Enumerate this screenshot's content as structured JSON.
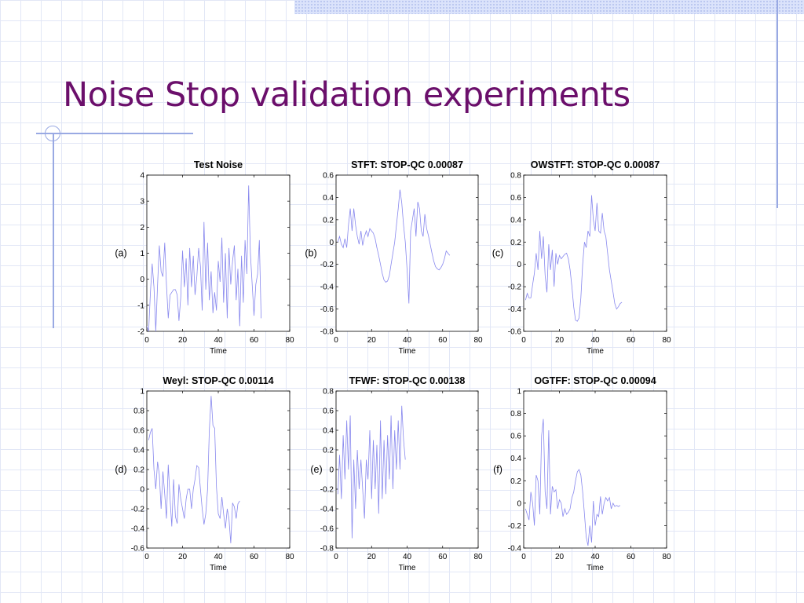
{
  "slide": {
    "title": "Noise Stop validation experiments"
  },
  "colors": {
    "title": "#6b0f6b",
    "series_line": "#8888ee",
    "decor_line": "#99a9e3"
  },
  "chart_data": [
    {
      "type": "line",
      "panel_label": "(a)",
      "title": "Test Noise",
      "xlabel": "Time",
      "ylabel": "",
      "xlim": [
        0,
        80
      ],
      "ylim": [
        -2,
        4
      ],
      "xticks": [
        0,
        20,
        40,
        60,
        80
      ],
      "yticks": [
        -2,
        -1,
        0,
        1,
        2,
        3,
        4
      ],
      "x_start": 0,
      "values": [
        -1.8,
        -2.0,
        -0.5,
        0.6,
        -0.3,
        -2.0,
        -0.2,
        1.3,
        0.3,
        0.1,
        1.4,
        -0.2,
        -1.5,
        -0.6,
        -0.5,
        -0.4,
        -0.4,
        -0.6,
        -1.6,
        -0.7,
        1.1,
        -0.3,
        0.8,
        -1.0,
        1.2,
        -0.3,
        0.9,
        -0.6,
        0.1,
        1.2,
        0.5,
        -1.2,
        2.2,
        -0.4,
        1.4,
        -0.8,
        0.3,
        -1.3,
        -0.5,
        -1.2,
        0.7,
        -0.1,
        1.6,
        -0.9,
        1.0,
        -1.5,
        1.2,
        -0.2,
        0.7,
        1.3,
        -0.8,
        0.4,
        -1.8,
        0.9,
        -0.9,
        1.5,
        0.2,
        3.6,
        1.0,
        -0.2,
        -1.4,
        -0.2,
        0.2,
        1.5,
        -1.5
      ]
    },
    {
      "type": "line",
      "panel_label": "(b)",
      "title": "STFT: STOP-QC 0.00087",
      "xlabel": "Time",
      "ylabel": "",
      "xlim": [
        0,
        80
      ],
      "ylim": [
        -0.8,
        0.6
      ],
      "xticks": [
        0,
        20,
        40,
        60,
        80
      ],
      "yticks": [
        -0.8,
        -0.6,
        -0.4,
        -0.2,
        0,
        0.2,
        0.4,
        0.6
      ],
      "x_start": 1,
      "values": [
        0.0,
        0.05,
        -0.02,
        -0.05,
        0.03,
        -0.05,
        0.15,
        0.3,
        0.1,
        0.3,
        0.15,
        0.05,
        -0.02,
        0.1,
        -0.03,
        0.05,
        0.1,
        0.05,
        0.12,
        0.1,
        0.08,
        0.03,
        -0.05,
        -0.12,
        -0.2,
        -0.28,
        -0.34,
        -0.36,
        -0.35,
        -0.3,
        -0.2,
        -0.1,
        0.0,
        0.15,
        0.3,
        0.47,
        0.35,
        0.15,
        0.0,
        -0.25,
        -0.55,
        0.1,
        0.2,
        0.3,
        0.05,
        0.36,
        0.3,
        0.1,
        0.05,
        0.25,
        0.12,
        0.06,
        -0.02,
        -0.1,
        -0.17,
        -0.22,
        -0.24,
        -0.25,
        -0.23,
        -0.2,
        -0.15,
        -0.08,
        -0.1,
        -0.12
      ]
    },
    {
      "type": "line",
      "panel_label": "(c)",
      "title": "OWSTFT: STOP-QC 0.00087",
      "xlabel": "Time",
      "ylabel": "",
      "xlim": [
        0,
        80
      ],
      "ylim": [
        -0.6,
        0.8
      ],
      "xticks": [
        0,
        20,
        40,
        60,
        80
      ],
      "yticks": [
        -0.6,
        -0.4,
        -0.2,
        0,
        0.2,
        0.4,
        0.6,
        0.8
      ],
      "x_start": 1,
      "values": [
        -0.32,
        -0.26,
        -0.3,
        -0.3,
        -0.18,
        -0.08,
        0.1,
        -0.05,
        0.3,
        0.05,
        0.25,
        -0.1,
        -0.25,
        0.18,
        -0.05,
        0.13,
        -0.2,
        0.1,
        0.0,
        0.08,
        0.05,
        0.07,
        0.09,
        0.1,
        0.05,
        -0.05,
        -0.2,
        -0.38,
        -0.5,
        -0.51,
        -0.48,
        -0.3,
        0.0,
        0.2,
        0.15,
        0.3,
        0.25,
        0.62,
        0.4,
        0.3,
        0.55,
        0.3,
        0.28,
        0.46,
        0.3,
        0.25,
        0.1,
        -0.05,
        -0.15,
        -0.25,
        -0.35,
        -0.4,
        -0.38,
        -0.35,
        -0.34
      ]
    },
    {
      "type": "line",
      "panel_label": "(d)",
      "title": "Weyl: STOP-QC 0.00114",
      "xlabel": "Time",
      "ylabel": "",
      "xlim": [
        0,
        80
      ],
      "ylim": [
        -0.6,
        1
      ],
      "xticks": [
        0,
        20,
        40,
        60,
        80
      ],
      "yticks": [
        -0.6,
        -0.4,
        -0.2,
        0,
        0.2,
        0.4,
        0.6,
        0.8,
        1
      ],
      "x_start": 1,
      "values": [
        0.5,
        0.58,
        0.62,
        0.2,
        0.0,
        0.28,
        0.15,
        -0.2,
        0.18,
        -0.05,
        -0.3,
        0.25,
        -0.1,
        -0.38,
        0.1,
        -0.28,
        -0.35,
        0.05,
        -0.1,
        -0.2,
        -0.3,
        -0.1,
        0.0,
        0.0,
        -0.2,
        0.0,
        0.1,
        0.24,
        0.22,
        0.0,
        -0.2,
        -0.36,
        -0.25,
        0.0,
        0.6,
        0.95,
        0.65,
        0.62,
        0.02,
        -0.25,
        -0.3,
        -0.08,
        -0.25,
        -0.4,
        -0.2,
        -0.3,
        -0.55,
        -0.14,
        -0.18,
        -0.3,
        -0.15,
        -0.12
      ]
    },
    {
      "type": "line",
      "panel_label": "(e)",
      "title": "TFWF: STOP-QC 0.00138",
      "xlabel": "Time",
      "ylabel": "",
      "xlim": [
        0,
        80
      ],
      "ylim": [
        -0.8,
        0.8
      ],
      "xticks": [
        0,
        20,
        40,
        60,
        80
      ],
      "yticks": [
        -0.8,
        -0.6,
        -0.4,
        -0.2,
        0,
        0.2,
        0.4,
        0.6,
        0.8
      ],
      "x_start": 1,
      "values": [
        -0.25,
        0.15,
        -0.3,
        0.35,
        -0.1,
        0.5,
        0.0,
        0.55,
        -0.7,
        0.1,
        -0.4,
        0.2,
        -0.2,
        0.1,
        -0.2,
        -0.5,
        0.1,
        -0.1,
        0.4,
        -0.3,
        0.3,
        -0.2,
        0.25,
        -0.45,
        0.5,
        -0.3,
        0.3,
        -0.25,
        0.35,
        -0.1,
        0.55,
        -0.2,
        0.4,
        0.0,
        0.5,
        0.0,
        0.65,
        0.3,
        0.1
      ]
    },
    {
      "type": "line",
      "panel_label": "(f)",
      "title": "OGTFF: STOP-QC 0.00094",
      "xlabel": "Time",
      "ylabel": "",
      "xlim": [
        0,
        80
      ],
      "ylim": [
        -0.4,
        1
      ],
      "xticks": [
        0,
        20,
        40,
        60,
        80
      ],
      "yticks": [
        -0.4,
        -0.2,
        0,
        0.2,
        0.4,
        0.6,
        0.8,
        1
      ],
      "x_start": 1,
      "values": [
        -0.05,
        -0.1,
        -0.15,
        0.1,
        0.0,
        -0.2,
        0.25,
        0.2,
        -0.1,
        0.6,
        0.75,
        0.1,
        -0.05,
        0.65,
        -0.1,
        0.15,
        0.1,
        0.12,
        -0.05,
        0.03,
        0.0,
        -0.12,
        -0.05,
        -0.1,
        -0.08,
        -0.05,
        0.05,
        0.1,
        0.2,
        0.28,
        0.3,
        0.25,
        0.1,
        -0.1,
        -0.3,
        -0.38,
        -0.2,
        -0.35,
        0.02,
        -0.2,
        -0.1,
        -0.12,
        0.06,
        -0.1,
        0.0,
        0.05,
        0.02,
        0.05,
        -0.05,
        0.0,
        -0.03,
        -0.02,
        -0.03,
        -0.02
      ]
    }
  ]
}
